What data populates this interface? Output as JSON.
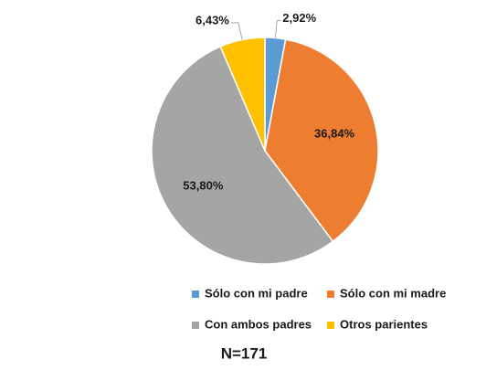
{
  "chart_data": {
    "type": "pie",
    "categories": [
      "Sólo con mi padre",
      "Sólo con mi madre",
      "Con ambos padres",
      "Otros parientes"
    ],
    "values": [
      2.92,
      36.84,
      53.8,
      6.43
    ],
    "value_labels": [
      "2,92%",
      "36,84%",
      "53,80%",
      "6,43%"
    ],
    "colors": [
      "#5b9bd5",
      "#ed7d31",
      "#a5a5a5",
      "#ffc000"
    ],
    "annotation": "N=171",
    "legend": "bottom"
  }
}
